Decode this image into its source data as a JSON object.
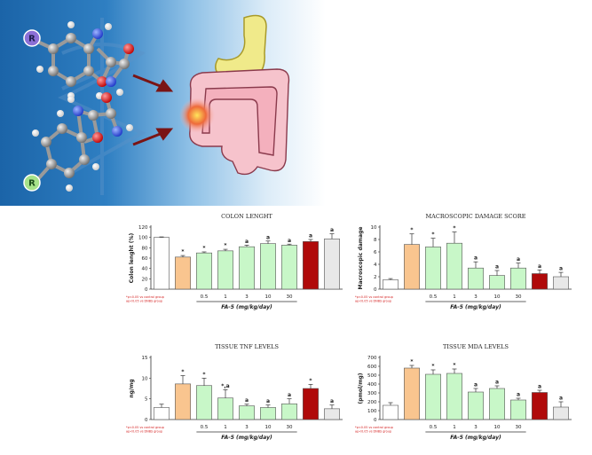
{
  "colors": {
    "control": "#ffffff",
    "dnbs": "#f9c58f",
    "fa5": "#c8f7c8",
    "pos_ctrl": "#b00a0a",
    "ref": "#e8e8e8",
    "legend_text": "#d42020",
    "r_badge_purple": "#8b6fd6",
    "r_badge_green": "#a6e28a"
  },
  "illustration": {
    "r_label_top": "R",
    "r_label_bottom": "R"
  },
  "chart_data": [
    {
      "type": "bar",
      "title": "COLON LENGHT",
      "ylabel": "Colon lenght (%)",
      "xlabel": "FA-5 (mg/kg/day)",
      "ylim": [
        0,
        120
      ],
      "yticks": [
        0,
        20,
        40,
        60,
        80,
        100,
        120
      ],
      "dose_labels": [
        "0.5",
        "1",
        "3",
        "10",
        "30"
      ],
      "values": [
        100,
        62,
        70,
        74,
        82,
        88,
        85,
        92,
        97
      ],
      "errors": [
        1,
        3,
        2,
        3,
        3,
        5,
        2,
        4,
        10
      ],
      "annotations": [
        "",
        "*",
        "*",
        "*",
        "a",
        "a",
        "a",
        "a",
        "a"
      ],
      "legend": [
        "*p<0.05 vs control group",
        "ap<0.05 vs DNBS group"
      ]
    },
    {
      "type": "bar",
      "title": "MACROSCOPIC DAMAGE SCORE",
      "ylabel": "Macroscopic damage",
      "xlabel": "FA-5 (mg/kg/day)",
      "ylim": [
        0,
        10
      ],
      "yticks": [
        0,
        2,
        4,
        6,
        8,
        10
      ],
      "dose_labels": [
        "0.5",
        "1",
        "3",
        "10",
        "30"
      ],
      "values": [
        1.5,
        7.2,
        6.8,
        7.4,
        3.4,
        2.2,
        3.4,
        2.5,
        2.0
      ],
      "errors": [
        0.2,
        1.7,
        1.4,
        1.8,
        1.0,
        0.8,
        0.8,
        0.6,
        0.7
      ],
      "annotations": [
        "",
        "*",
        "*",
        "*",
        "a",
        "a",
        "a",
        "a",
        "a"
      ],
      "legend": [
        "*p<0.05 vs control group",
        "ap<0.05 vs DNBS group"
      ]
    },
    {
      "type": "bar",
      "title": "TISSUE TNF LEVELS",
      "ylabel": "ng/mg",
      "xlabel": "FA-5 (mg/kg/day)",
      "ylim": [
        0,
        15
      ],
      "yticks": [
        0,
        5,
        10,
        15
      ],
      "dose_labels": [
        "0.5",
        "1",
        "3",
        "10",
        "30"
      ],
      "values": [
        2.9,
        8.6,
        8.2,
        5.2,
        3.3,
        2.9,
        3.8,
        7.5,
        2.6
      ],
      "errors": [
        0.8,
        2.0,
        1.8,
        2.0,
        0.4,
        0.6,
        1.2,
        1.0,
        0.9
      ],
      "annotations": [
        "",
        "*",
        "*",
        "*,a",
        "a",
        "a",
        "a",
        "*",
        "a"
      ],
      "legend": [
        "*p<0.05 vs control group",
        "ap<0.05 vs DNBS group"
      ]
    },
    {
      "type": "bar",
      "title": "TISSUE MDA LEVELS",
      "ylabel": "(pmol/mg)",
      "xlabel": "FA-5 (mg/kg/day)",
      "ylim": [
        0,
        700
      ],
      "yticks": [
        0,
        100,
        200,
        300,
        400,
        500,
        600,
        700
      ],
      "dose_labels": [
        "0.5",
        "1",
        "3",
        "10",
        "30"
      ],
      "values": [
        160,
        580,
        510,
        520,
        310,
        350,
        220,
        305,
        140
      ],
      "errors": [
        30,
        30,
        50,
        50,
        40,
        30,
        20,
        25,
        60
      ],
      "annotations": [
        "",
        "*",
        "*",
        "*",
        "a",
        "a",
        "a",
        "a",
        "a"
      ],
      "legend": [
        "*p<0.05 vs control group",
        "ap<0.05 vs DNBS group"
      ]
    }
  ]
}
